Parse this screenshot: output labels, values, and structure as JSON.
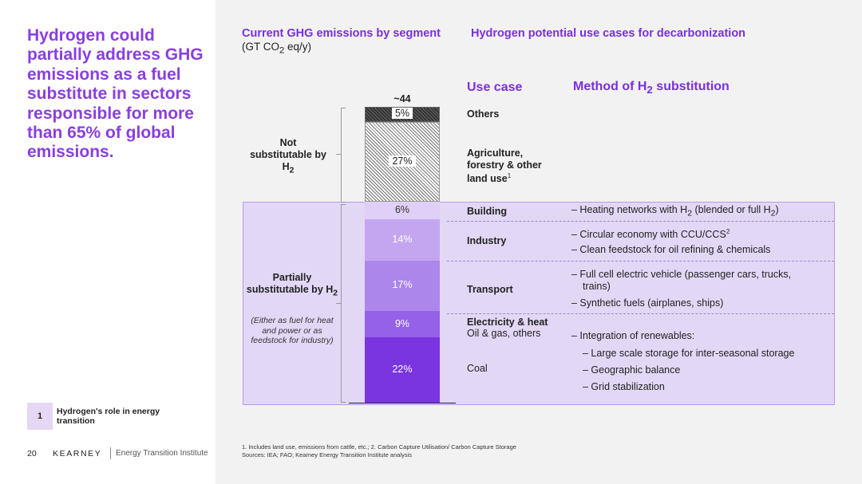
{
  "headline": "Hydrogen could partially address GHG emissions as a fuel substitute in sectors responsible for more than 65% of global emissions.",
  "tag": {
    "number": "1",
    "label": "Hydrogen's role in energy transition"
  },
  "footer": {
    "page": "20",
    "brand": "KEARNEY",
    "institute": "Energy Transition Institute"
  },
  "footnotes": [
    "1. Includes land use, emissions from cattle, etc.; 2. Carbon Capture Utilisation/ Carbon Capture Storage",
    "Sources: IEA; FAO; Kearney Energy Transition Institute analysis"
  ],
  "headers": {
    "chart_title": "Current GHG emissions by segment",
    "chart_unit_pre": "(GT CO",
    "chart_unit_sub": "2",
    "chart_unit_post": " eq/y)",
    "use_cases_title": "Hydrogen potential use cases for decarbonization",
    "use_case_col": "Use case",
    "method_col_pre": "Method of H",
    "method_col_sub": "2",
    "method_col_post": " substitution"
  },
  "groups": {
    "not_sub_pre": "Not substitutable by H",
    "not_sub_sub": "2",
    "partial_pre": "Partially substitutable by H",
    "partial_sub": "2",
    "partial_note": "(Either as fuel for heat and power or as feedstock for industry)"
  },
  "use_cases": {
    "others": "Others",
    "agriculture": "Agriculture, forestry & other land use",
    "agriculture_sup": "1",
    "building": "Building",
    "industry": "Industry",
    "transport": "Transport",
    "elec_heat": "Electricity & heat",
    "oil_gas": "Oil & gas, others",
    "coal": "Coal"
  },
  "methods": {
    "building_pre": "– Heating networks with H",
    "building_sub1": "2",
    "building_mid": " (blended or full H",
    "building_sub2": "2",
    "building_post": ")",
    "industry_1": "– Circular economy with CCU/CCS",
    "industry_1_sup": "2",
    "industry_2": "– Clean feedstock for oil refining & chemicals",
    "transport_1": "– Full cell electric vehicle (passenger cars, trucks, trains)",
    "transport_2": "– Synthetic fuels (airplanes, ships)",
    "elec_1": "– Integration of renewables:",
    "elec_2": "– Large scale storage for inter-seasonal storage",
    "elec_3": "– Geographic balance",
    "elec_4": "– Grid stabilization"
  },
  "colors": {
    "headline": "#8a3ee0",
    "accent": "#7a2fe0",
    "highlight_region": "#e3d7f6",
    "building": "#e0d0f7",
    "industry": "#c4a6f0",
    "transport": "#ad86ec",
    "oil_gas": "#9561e6",
    "coal": "#7a35e0"
  },
  "chart_data": {
    "type": "bar",
    "stacked": true,
    "total_label": "~44",
    "unit": "GT CO2 eq/y",
    "segments": [
      {
        "name": "Others",
        "value": 5,
        "label": "5%",
        "pattern": "dark-hatch",
        "color": "#444444"
      },
      {
        "name": "Agriculture, forestry & other land use",
        "value": 27,
        "label": "27%",
        "pattern": "hatch",
        "color": "#888888"
      },
      {
        "name": "Building",
        "value": 6,
        "label": "6%",
        "color": "#e0d0f7"
      },
      {
        "name": "Industry",
        "value": 14,
        "label": "14%",
        "color": "#c4a6f0"
      },
      {
        "name": "Transport",
        "value": 17,
        "label": "17%",
        "color": "#ad86ec"
      },
      {
        "name": "Oil & gas, others",
        "value": 9,
        "label": "9%",
        "color": "#9561e6"
      },
      {
        "name": "Coal",
        "value": 22,
        "label": "22%",
        "color": "#7a35e0"
      }
    ]
  }
}
